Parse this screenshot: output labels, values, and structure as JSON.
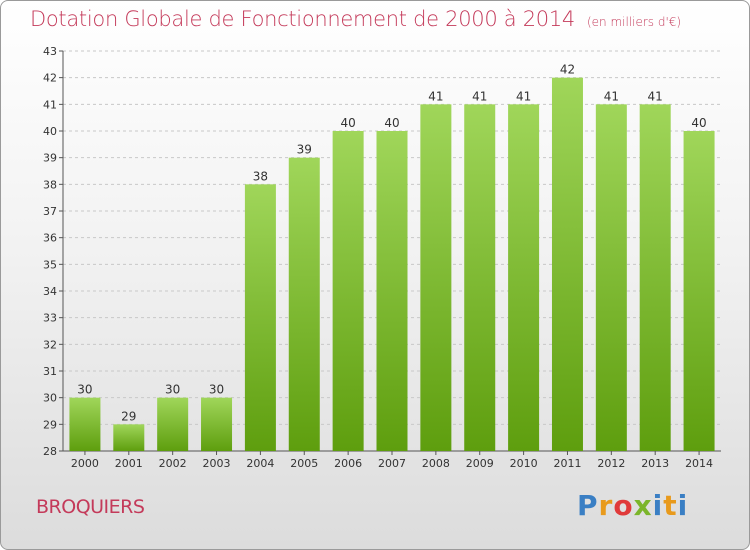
{
  "title": "Dotation Globale de Fonctionnement de 2000 à 2014",
  "subtitle": "(en milliers d'€)",
  "commune": "BROQUIERS",
  "logo": {
    "text": "Proxiti",
    "colors": [
      "#3a7fc4",
      "#e89a1c",
      "#e03a3a",
      "#7bb52a",
      "#3a7fc4",
      "#e89a1c",
      "#3a7fc4"
    ]
  },
  "colors": {
    "bar_top": "#a0d65a",
    "bar_bottom": "#5e9e0e",
    "title": "#c43a5a"
  },
  "chart_data": {
    "type": "bar",
    "categories": [
      "2000",
      "2001",
      "2002",
      "2003",
      "2004",
      "2005",
      "2006",
      "2007",
      "2008",
      "2009",
      "2010",
      "2011",
      "2012",
      "2013",
      "2014"
    ],
    "values": [
      30,
      29,
      30,
      30,
      38,
      39,
      40,
      40,
      41,
      41,
      41,
      42,
      41,
      41,
      40
    ],
    "ylim": [
      28,
      43
    ],
    "yticks": [
      28,
      29,
      30,
      31,
      32,
      33,
      34,
      35,
      36,
      37,
      38,
      39,
      40,
      41,
      42,
      43
    ],
    "grid": true
  }
}
